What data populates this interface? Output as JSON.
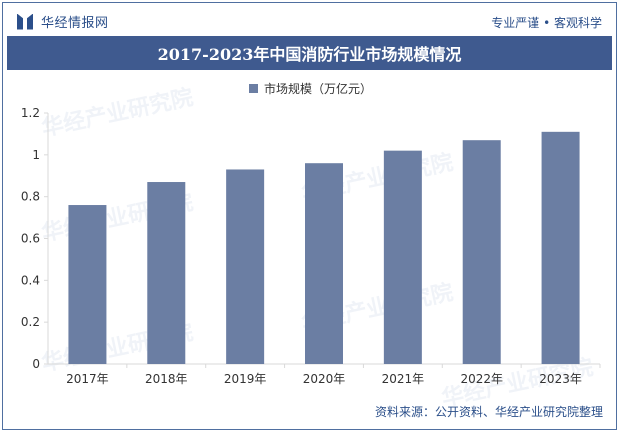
{
  "header": {
    "brand": "华经情报网",
    "slogan": "专业严谨 • 客观科学"
  },
  "watermark_text": "华经产业研究院",
  "footer": {
    "source": "资料来源：公开资料、华经产业研究院整理"
  },
  "colors": {
    "title_bar": "#3f5a8f",
    "bar": "#6b7ea3",
    "brand": "#2b4f8a"
  },
  "chart_data": {
    "type": "bar",
    "title": "2017-2023年中国消防行业市场规模情况",
    "series": [
      {
        "name": "市场规模（万亿元）",
        "values": [
          0.76,
          0.87,
          0.93,
          0.96,
          1.02,
          1.07,
          1.11
        ]
      }
    ],
    "categories": [
      "2017年",
      "2018年",
      "2019年",
      "2020年",
      "2021年",
      "2022年",
      "2023年"
    ],
    "ylim": [
      0,
      1.2
    ],
    "yticks": [
      "0",
      "0.2",
      "0.4",
      "0.6",
      "0.8",
      "1",
      "1.2"
    ],
    "grid": false,
    "legend": "top-center"
  }
}
